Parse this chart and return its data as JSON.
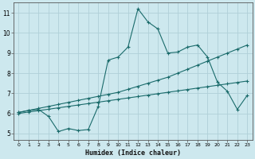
{
  "xlabel": "Humidex (Indice chaleur)",
  "bg_color": "#cde8ee",
  "grid_color": "#b0d0d8",
  "line_color": "#1a6b6b",
  "xlim": [
    -0.5,
    23.5
  ],
  "ylim": [
    4.7,
    11.5
  ],
  "xtick_labels": [
    "0",
    "1",
    "2",
    "3",
    "4",
    "5",
    "6",
    "7",
    "8",
    "9",
    "10",
    "11",
    "12",
    "13",
    "14",
    "15",
    "16",
    "17",
    "18",
    "19",
    "20",
    "21",
    "22",
    "23"
  ],
  "xtick_pos": [
    0,
    1,
    2,
    3,
    4,
    5,
    6,
    7,
    8,
    9,
    10,
    11,
    12,
    13,
    14,
    15,
    16,
    17,
    18,
    19,
    20,
    21,
    22,
    23
  ],
  "ytick_pos": [
    5,
    6,
    7,
    8,
    9,
    10,
    11
  ],
  "ytick_labels": [
    "5",
    "6",
    "7",
    "8",
    "9",
    "10",
    "11"
  ],
  "line1_x": [
    0,
    1,
    2,
    3,
    4,
    5,
    6,
    7,
    8,
    9,
    10,
    11,
    12,
    13,
    14,
    15,
    16,
    17,
    18,
    19,
    20,
    21,
    22,
    23
  ],
  "line1_y": [
    6.05,
    6.15,
    6.25,
    6.35,
    6.45,
    6.55,
    6.65,
    6.75,
    6.85,
    6.95,
    7.05,
    7.2,
    7.35,
    7.5,
    7.65,
    7.8,
    8.0,
    8.2,
    8.4,
    8.6,
    8.8,
    9.0,
    9.2,
    9.4
  ],
  "line2_x": [
    0,
    1,
    2,
    3,
    4,
    5,
    6,
    7,
    8,
    9,
    10,
    11,
    12,
    13,
    14,
    15,
    16,
    17,
    18,
    19,
    20,
    21,
    22,
    23
  ],
  "line2_y": [
    6.0,
    6.07,
    6.14,
    6.21,
    6.28,
    6.35,
    6.42,
    6.49,
    6.56,
    6.63,
    6.7,
    6.77,
    6.84,
    6.91,
    6.98,
    7.05,
    7.12,
    7.19,
    7.26,
    7.33,
    7.4,
    7.47,
    7.54,
    7.61
  ],
  "line3_x": [
    0,
    1,
    2,
    3,
    4,
    5,
    6,
    7,
    8,
    9,
    10,
    11,
    12,
    13,
    14,
    15,
    16,
    17,
    18,
    19,
    20,
    21,
    22,
    23
  ],
  "line3_y": [
    6.05,
    6.15,
    6.2,
    5.85,
    5.1,
    5.25,
    5.15,
    5.2,
    6.35,
    8.65,
    8.8,
    9.3,
    11.2,
    10.55,
    10.2,
    9.0,
    9.05,
    9.3,
    9.4,
    8.8,
    7.55,
    7.1,
    6.2,
    6.9
  ]
}
